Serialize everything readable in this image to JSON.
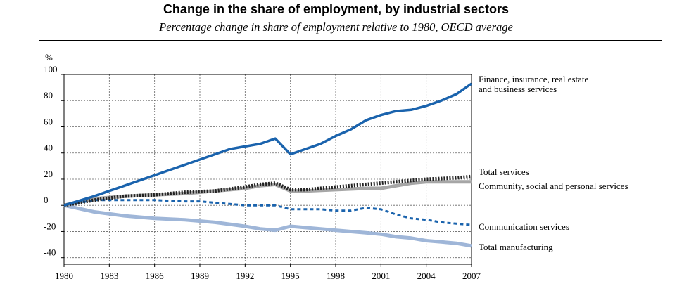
{
  "chart_data": {
    "type": "line",
    "title": "Change in the share of employment, by industrial sectors",
    "subtitle": "Percentage change in share of employment relative to 1980, OECD average",
    "ylabel": "%",
    "xlabel": "",
    "xlim": [
      1980,
      2007
    ],
    "ylim": [
      -45,
      100
    ],
    "grid": true,
    "x_ticks": [
      "1980",
      "1983",
      "1986",
      "1989",
      "1992",
      "1995",
      "1998",
      "2001",
      "2004",
      "2007"
    ],
    "y_ticks": [
      "100",
      "80",
      "60",
      "40",
      "20",
      "0",
      "-20",
      "-40"
    ],
    "series": [
      {
        "name": "Finance, insurance, real estate and business services",
        "label_lines": [
          "Finance, insurance, real estate",
          "and business services"
        ],
        "color": "#1a63ad",
        "style": "solid",
        "x": [
          1980,
          1982,
          1983,
          1984,
          1985,
          1986,
          1987,
          1988,
          1989,
          1990,
          1991,
          1992,
          1993,
          1994,
          1995,
          1996,
          1997,
          1998,
          1999,
          2000,
          2001,
          2002,
          2003,
          2004,
          2005,
          2006,
          2007
        ],
        "values": [
          0,
          7,
          11,
          15,
          19,
          23,
          27,
          31,
          35,
          39,
          43,
          45,
          47,
          51,
          39,
          43,
          47,
          53,
          58,
          65,
          69,
          72,
          73,
          76,
          80,
          85,
          93
        ]
      },
      {
        "name": "Total services",
        "color": "#222222",
        "style": "dotted",
        "x": [
          1980,
          1982,
          1984,
          1986,
          1988,
          1990,
          1992,
          1993,
          1994,
          1995,
          1996,
          1998,
          2000,
          2002,
          2004,
          2006,
          2007
        ],
        "values": [
          0,
          4,
          7,
          8,
          10,
          11,
          14,
          16,
          17,
          12,
          12,
          14,
          16,
          18,
          20,
          21,
          22
        ]
      },
      {
        "name": "Community, social and personal services",
        "color": "#a6a6a6",
        "style": "solid",
        "x": [
          1980,
          1982,
          1984,
          1986,
          1988,
          1990,
          1992,
          1993,
          1994,
          1995,
          1996,
          1998,
          2000,
          2001,
          2002,
          2003,
          2004,
          2005,
          2006,
          2007
        ],
        "values": [
          0,
          5,
          7,
          8,
          9,
          11,
          13,
          15,
          16,
          11,
          11,
          12,
          13,
          13,
          15,
          17,
          18,
          18,
          18,
          18
        ]
      },
      {
        "name": "Communication services",
        "color": "#1a63ad",
        "style": "dashed",
        "x": [
          1980,
          1982,
          1984,
          1986,
          1988,
          1989,
          1990,
          1991,
          1992,
          1993,
          1994,
          1995,
          1996,
          1997,
          1998,
          1999,
          2000,
          2001,
          2002,
          2003,
          2004,
          2005,
          2006,
          2007
        ],
        "values": [
          0,
          4,
          4,
          4,
          3,
          3,
          2,
          1,
          0,
          0,
          0,
          -3,
          -3,
          -3,
          -4,
          -4,
          -2,
          -3,
          -7,
          -10,
          -11,
          -13,
          -14,
          -15
        ]
      },
      {
        "name": "Total manufacturing",
        "color": "#9fb6d8",
        "style": "solid",
        "x": [
          1980,
          1982,
          1984,
          1986,
          1988,
          1990,
          1992,
          1993,
          1994,
          1995,
          1996,
          1998,
          2000,
          2001,
          2002,
          2003,
          2004,
          2005,
          2006,
          2007
        ],
        "values": [
          0,
          -5,
          -8,
          -10,
          -11,
          -13,
          -16,
          -18,
          -19,
          -16,
          -17,
          -19,
          -21,
          -22,
          -24,
          -25,
          -27,
          -28,
          -29,
          -31
        ]
      }
    ]
  }
}
